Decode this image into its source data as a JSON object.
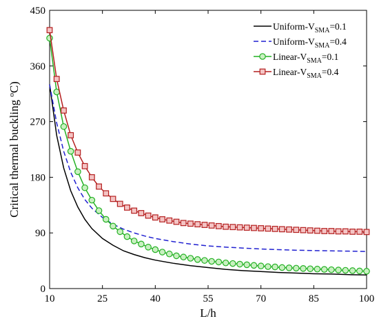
{
  "chart_data": {
    "type": "line",
    "title": "",
    "xlabel": "L/h",
    "ylabel": "Critical thermal buckling (°C)",
    "xlim": [
      10,
      100
    ],
    "ylim": [
      0,
      450
    ],
    "xticks": [
      10,
      25,
      40,
      55,
      70,
      85,
      100
    ],
    "yticks": [
      0,
      90,
      180,
      270,
      360,
      450
    ],
    "grid": false,
    "legend_position": "top-right",
    "series": [
      {
        "name": "Uniform-VSMA=0.1",
        "legend_main": "Uniform-V",
        "legend_sub": "SMA",
        "legend_tail": "=0.1",
        "color": "#000000",
        "dash": "none",
        "marker": "none",
        "x": [
          10,
          12,
          14,
          16,
          18,
          20,
          22,
          25,
          28,
          31,
          34,
          37,
          40,
          45,
          50,
          55,
          60,
          65,
          70,
          75,
          80,
          85,
          90,
          95,
          100
        ],
        "y": [
          330,
          248,
          195,
          158,
          132,
          112,
          97,
          81,
          70,
          61,
          55,
          50,
          46,
          41,
          37,
          34,
          31,
          29,
          27.5,
          26,
          25,
          24,
          23.5,
          22.5,
          22
        ]
      },
      {
        "name": "Uniform-VSMA=0.4",
        "legend_main": "Uniform-V",
        "legend_sub": "SMA",
        "legend_tail": "=0.4",
        "color": "#1f1fd0",
        "dash": "7,4",
        "marker": "none",
        "x": [
          10,
          12,
          14,
          16,
          18,
          20,
          22,
          25,
          28,
          31,
          34,
          37,
          40,
          45,
          50,
          55,
          60,
          65,
          70,
          75,
          80,
          85,
          90,
          95,
          100
        ],
        "y": [
          330,
          268,
          222,
          188,
          163,
          144,
          130,
          115,
          104,
          96,
          90,
          85,
          81,
          76,
          72,
          69,
          67,
          65.5,
          64,
          63,
          62,
          61.5,
          61,
          60.5,
          60
        ]
      },
      {
        "name": "Linear-VSMA=0.1",
        "legend_main": "Linear-V",
        "legend_sub": "SMA",
        "legend_tail": "=0.1",
        "color": "#22b022",
        "dash": "none",
        "marker": "circle",
        "x": [
          10,
          12,
          14,
          16,
          18,
          20,
          22,
          24,
          26,
          28,
          30,
          32,
          34,
          36,
          38,
          40,
          42,
          44,
          46,
          48,
          50,
          52,
          54,
          56,
          58,
          60,
          62,
          64,
          66,
          68,
          70,
          72,
          74,
          76,
          78,
          80,
          82,
          84,
          86,
          88,
          90,
          92,
          94,
          96,
          98,
          100
        ],
        "y": [
          405,
          318,
          262,
          222,
          189,
          163,
          143,
          126,
          112,
          101,
          92,
          84,
          77,
          72,
          67,
          63,
          59,
          56,
          53,
          51,
          49,
          47,
          45.5,
          44,
          43,
          41.5,
          40.5,
          39.5,
          38.5,
          37.5,
          36.5,
          35.5,
          35,
          34,
          33.5,
          33,
          32.5,
          32,
          31.5,
          31,
          30.5,
          30,
          29.5,
          29,
          28.5,
          28
        ]
      },
      {
        "name": "Linear-VSMA=0.4",
        "legend_main": "Linear-V",
        "legend_sub": "SMA",
        "legend_tail": "=0.4",
        "color": "#b41e1e",
        "dash": "none",
        "marker": "square",
        "x": [
          10,
          12,
          14,
          16,
          18,
          20,
          22,
          24,
          26,
          28,
          30,
          32,
          34,
          36,
          38,
          40,
          42,
          44,
          46,
          48,
          50,
          52,
          54,
          56,
          58,
          60,
          62,
          64,
          66,
          68,
          70,
          72,
          74,
          76,
          78,
          80,
          82,
          84,
          86,
          88,
          90,
          92,
          94,
          96,
          98,
          100
        ],
        "y": [
          418,
          339,
          288,
          248,
          220,
          198,
          180,
          165,
          154,
          145,
          137,
          131,
          126,
          122,
          118,
          115,
          112,
          110,
          108,
          106,
          105,
          104,
          103,
          102,
          101,
          100,
          99.5,
          99,
          98.5,
          98,
          97.5,
          97,
          96.5,
          96,
          95.5,
          95,
          94.5,
          94,
          93.5,
          93,
          93,
          92.5,
          92.5,
          92,
          92,
          91.5
        ]
      }
    ]
  }
}
